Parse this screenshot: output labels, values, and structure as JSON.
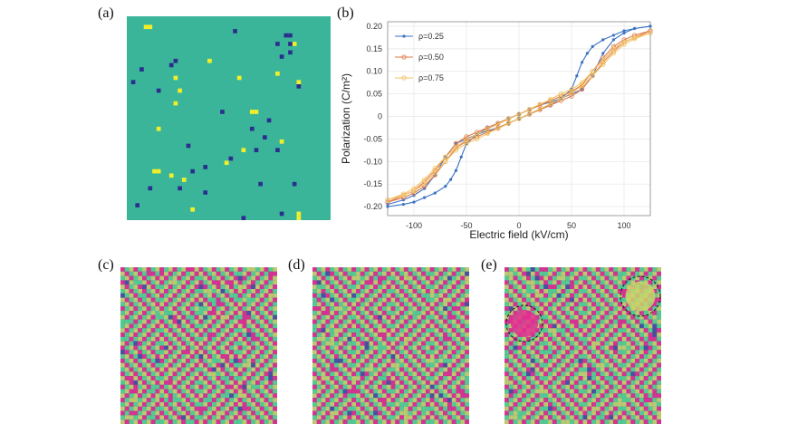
{
  "labels": {
    "a": "(a)",
    "b": "(b)",
    "c": "(c)",
    "d": "(d)",
    "e": "(e)"
  },
  "colors": {
    "background_phase": "#3bb59a",
    "dopant_yellow": "#f2ef2a",
    "dopant_navy": "#2b2f8c",
    "domain_purple": "#4a4fa0",
    "domain_magenta": "#e4308f",
    "domain_green": "#55d690",
    "domain_olive": "#c8d66a"
  },
  "chart_data": {
    "type": "line",
    "title": "",
    "xlabel": "Electric field (kV/cm)",
    "ylabel": "Polarization (C/m²)",
    "xlim": [
      -125,
      125
    ],
    "ylim": [
      -0.22,
      0.21
    ],
    "xticks": [
      "-100",
      "-50",
      "0",
      "50",
      "100"
    ],
    "yticks": [
      "0.20",
      "0.15",
      "0.10",
      "0.05",
      "0",
      "-0.05",
      "-0.10",
      "-0.15",
      "-0.20"
    ],
    "legend_position": "top-left",
    "series": [
      {
        "name": "ρ=0.25",
        "color": "#3b72c4",
        "marker": "dot",
        "x_up": [
          -125,
          -110,
          -100,
          -90,
          -80,
          -70,
          -60,
          -50,
          -40,
          -30,
          -20,
          -10,
          0,
          10,
          20,
          30,
          40,
          50,
          55,
          60,
          65,
          70,
          80,
          90,
          100,
          110,
          125
        ],
        "y_up": [
          -0.195,
          -0.185,
          -0.175,
          -0.16,
          -0.13,
          -0.09,
          -0.06,
          -0.05,
          -0.04,
          -0.032,
          -0.025,
          -0.015,
          -0.005,
          0.005,
          0.015,
          0.025,
          0.04,
          0.06,
          0.09,
          0.12,
          0.14,
          0.155,
          0.17,
          0.18,
          0.19,
          0.195,
          0.2
        ],
        "x_down": [
          125,
          110,
          100,
          90,
          80,
          70,
          60,
          50,
          40,
          30,
          20,
          10,
          0,
          -10,
          -20,
          -30,
          -40,
          -50,
          -55,
          -60,
          -65,
          -70,
          -80,
          -90,
          -100,
          -110,
          -125
        ],
        "y_down": [
          0.2,
          0.195,
          0.185,
          0.17,
          0.14,
          0.09,
          0.06,
          0.05,
          0.04,
          0.032,
          0.025,
          0.015,
          0.005,
          -0.005,
          -0.015,
          -0.025,
          -0.04,
          -0.06,
          -0.09,
          -0.12,
          -0.14,
          -0.155,
          -0.17,
          -0.18,
          -0.19,
          -0.195,
          -0.2
        ]
      },
      {
        "name": "ρ=0.50",
        "color": "#e0784a",
        "marker": "circle",
        "x_up": [
          -125,
          -110,
          -100,
          -90,
          -80,
          -70,
          -60,
          -50,
          -40,
          -30,
          -20,
          -10,
          0,
          10,
          20,
          30,
          40,
          50,
          60,
          70,
          80,
          90,
          100,
          110,
          125
        ],
        "y_up": [
          -0.19,
          -0.18,
          -0.17,
          -0.155,
          -0.13,
          -0.1,
          -0.07,
          -0.055,
          -0.045,
          -0.035,
          -0.025,
          -0.015,
          -0.005,
          0.005,
          0.015,
          0.025,
          0.035,
          0.045,
          0.06,
          0.09,
          0.12,
          0.145,
          0.165,
          0.175,
          0.19
        ],
        "x_down": [
          125,
          110,
          100,
          90,
          80,
          70,
          60,
          50,
          40,
          30,
          20,
          10,
          0,
          -10,
          -20,
          -30,
          -40,
          -50,
          -60,
          -70,
          -80,
          -90,
          -100,
          -110,
          -125
        ],
        "y_down": [
          0.19,
          0.18,
          0.17,
          0.155,
          0.13,
          0.1,
          0.07,
          0.055,
          0.045,
          0.035,
          0.025,
          0.015,
          0.005,
          -0.005,
          -0.015,
          -0.025,
          -0.035,
          -0.045,
          -0.06,
          -0.09,
          -0.12,
          -0.145,
          -0.165,
          -0.175,
          -0.19
        ]
      },
      {
        "name": "ρ=0.75",
        "color": "#f0c060",
        "marker": "circle",
        "x_up": [
          -125,
          -110,
          -100,
          -90,
          -80,
          -70,
          -60,
          -50,
          -40,
          -30,
          -20,
          -10,
          0,
          10,
          20,
          30,
          40,
          50,
          60,
          70,
          80,
          90,
          100,
          110,
          125
        ],
        "y_up": [
          -0.185,
          -0.175,
          -0.165,
          -0.15,
          -0.125,
          -0.1,
          -0.075,
          -0.06,
          -0.05,
          -0.038,
          -0.027,
          -0.016,
          -0.005,
          0.006,
          0.017,
          0.028,
          0.04,
          0.052,
          0.068,
          0.09,
          0.115,
          0.14,
          0.16,
          0.172,
          0.185
        ],
        "x_down": [
          125,
          110,
          100,
          90,
          80,
          70,
          60,
          50,
          40,
          30,
          20,
          10,
          0,
          -10,
          -20,
          -30,
          -40,
          -50,
          -60,
          -70,
          -80,
          -90,
          -100,
          -110,
          -125
        ],
        "y_down": [
          0.185,
          0.175,
          0.165,
          0.15,
          0.125,
          0.1,
          0.075,
          0.06,
          0.05,
          0.038,
          0.027,
          0.016,
          0.005,
          -0.006,
          -0.017,
          -0.028,
          -0.04,
          -0.052,
          -0.068,
          -0.09,
          -0.115,
          -0.14,
          -0.16,
          -0.172,
          -0.185
        ]
      }
    ]
  },
  "dopant_map": {
    "grid": 48,
    "yellow_cells": [
      [
        4,
        2
      ],
      [
        5,
        2
      ],
      [
        39,
        6
      ],
      [
        19,
        10
      ],
      [
        35,
        13
      ],
      [
        11,
        14
      ],
      [
        26,
        14
      ],
      [
        12,
        17
      ],
      [
        40,
        15
      ],
      [
        11,
        20
      ],
      [
        29,
        22
      ],
      [
        30,
        22
      ],
      [
        7,
        26
      ],
      [
        36,
        29
      ],
      [
        27,
        31
      ],
      [
        6,
        36
      ],
      [
        7,
        36
      ],
      [
        10,
        37
      ],
      [
        13,
        38
      ],
      [
        23,
        34
      ],
      [
        15,
        45
      ],
      [
        41,
        48
      ],
      [
        40,
        47
      ],
      [
        40,
        46
      ]
    ],
    "navy_cells": [
      [
        25,
        3
      ],
      [
        37,
        4
      ],
      [
        38,
        4
      ],
      [
        38,
        6
      ],
      [
        35,
        6
      ],
      [
        36,
        9
      ],
      [
        38,
        8
      ],
      [
        11,
        10
      ],
      [
        10,
        11
      ],
      [
        3,
        12
      ],
      [
        1,
        15
      ],
      [
        22,
        22
      ],
      [
        7,
        17
      ],
      [
        33,
        24
      ],
      [
        40,
        16
      ],
      [
        29,
        26
      ],
      [
        32,
        28
      ],
      [
        35,
        31
      ],
      [
        30,
        31
      ],
      [
        24,
        33
      ],
      [
        18,
        35
      ],
      [
        15,
        36
      ],
      [
        5,
        40
      ],
      [
        12,
        40
      ],
      [
        18,
        41
      ],
      [
        31,
        39
      ],
      [
        39,
        39
      ],
      [
        27,
        47
      ],
      [
        36,
        46
      ],
      [
        14,
        30
      ],
      [
        2,
        44
      ]
    ]
  }
}
